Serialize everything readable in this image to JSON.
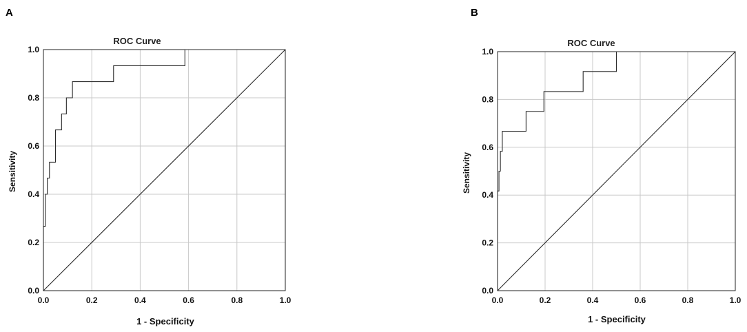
{
  "chart_data": [
    {
      "type": "line",
      "panel_label": "A",
      "title": "ROC Curve",
      "xlabel": "1 - Specificity",
      "ylabel": "Sensitivity",
      "xlim": [
        0,
        1
      ],
      "ylim": [
        0,
        1
      ],
      "xticks": [
        "0.0",
        "0.2",
        "0.4",
        "0.6",
        "0.8",
        "1.0"
      ],
      "yticks": [
        "0.0",
        "0.2",
        "0.4",
        "0.6",
        "0.8",
        "1.0"
      ],
      "grid": true,
      "series": [
        {
          "role": "roc",
          "x": [
            0,
            0,
            0.008,
            0.008,
            0.016,
            0.016,
            0.025,
            0.025,
            0.05,
            0.05,
            0.075,
            0.075,
            0.095,
            0.095,
            0.12,
            0.12,
            0.29,
            0.29,
            0.585,
            0.585,
            1
          ],
          "y": [
            0,
            0.267,
            0.267,
            0.4,
            0.4,
            0.467,
            0.467,
            0.533,
            0.533,
            0.667,
            0.667,
            0.733,
            0.733,
            0.8,
            0.8,
            0.867,
            0.867,
            0.933,
            0.933,
            1,
            1
          ]
        },
        {
          "role": "reference",
          "x": [
            0,
            1
          ],
          "y": [
            0,
            1
          ]
        }
      ]
    },
    {
      "type": "line",
      "panel_label": "B",
      "title": "ROC Curve",
      "xlabel": "1 - Specificity",
      "ylabel": "Sensitivity",
      "xlim": [
        0,
        1
      ],
      "ylim": [
        0,
        1
      ],
      "xticks": [
        "0.0",
        "0.2",
        "0.4",
        "0.6",
        "0.8",
        "1.0"
      ],
      "yticks": [
        "0.0",
        "0.2",
        "0.4",
        "0.6",
        "0.8",
        "1.0"
      ],
      "grid": true,
      "series": [
        {
          "role": "roc",
          "x": [
            0,
            0,
            0.006,
            0.006,
            0.012,
            0.012,
            0.02,
            0.02,
            0.12,
            0.12,
            0.195,
            0.195,
            0.36,
            0.36,
            0.5,
            0.5,
            1
          ],
          "y": [
            0,
            0.417,
            0.417,
            0.5,
            0.5,
            0.583,
            0.583,
            0.667,
            0.667,
            0.75,
            0.75,
            0.833,
            0.833,
            0.917,
            0.917,
            1,
            1
          ]
        },
        {
          "role": "reference",
          "x": [
            0,
            1
          ],
          "y": [
            0,
            1
          ]
        }
      ]
    }
  ]
}
